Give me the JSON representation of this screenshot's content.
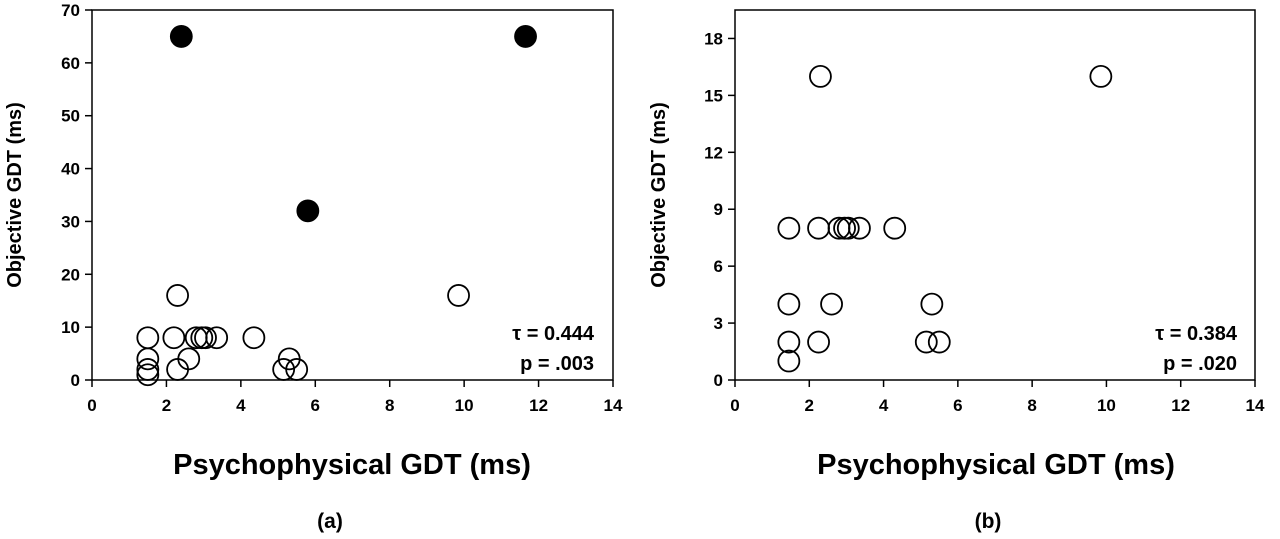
{
  "chart_data": [
    {
      "type": "scatter",
      "panel_label": "(a)",
      "xlabel": "Psychophysical GDT (ms)",
      "ylabel": "Objective GDT (ms)",
      "xlim": [
        0,
        14
      ],
      "ylim": [
        0,
        70
      ],
      "xticks": [
        0,
        2,
        4,
        6,
        8,
        10,
        12,
        14
      ],
      "yticks": [
        0,
        10,
        20,
        30,
        40,
        50,
        60,
        70
      ],
      "grid": false,
      "stats": {
        "tau": "τ = 0.444",
        "p": "p = .003"
      },
      "series": [
        {
          "marker": "open-circle",
          "points": [
            {
              "x": 1.5,
              "y": 8
            },
            {
              "x": 1.5,
              "y": 4
            },
            {
              "x": 1.5,
              "y": 2
            },
            {
              "x": 1.5,
              "y": 1
            },
            {
              "x": 2.3,
              "y": 16
            },
            {
              "x": 2.2,
              "y": 8
            },
            {
              "x": 2.3,
              "y": 2
            },
            {
              "x": 2.6,
              "y": 4
            },
            {
              "x": 2.8,
              "y": 8
            },
            {
              "x": 2.95,
              "y": 8
            },
            {
              "x": 3.05,
              "y": 8
            },
            {
              "x": 3.35,
              "y": 8
            },
            {
              "x": 4.35,
              "y": 8
            },
            {
              "x": 5.3,
              "y": 4
            },
            {
              "x": 5.15,
              "y": 2
            },
            {
              "x": 5.5,
              "y": 2
            },
            {
              "x": 9.85,
              "y": 16
            }
          ]
        },
        {
          "marker": "filled-circle",
          "points": [
            {
              "x": 2.4,
              "y": 65
            },
            {
              "x": 5.8,
              "y": 32
            },
            {
              "x": 11.65,
              "y": 65
            }
          ]
        }
      ]
    },
    {
      "type": "scatter",
      "panel_label": "(b)",
      "xlabel": "Psychophysical GDT (ms)",
      "ylabel": "Objective GDT (ms)",
      "xlim": [
        0,
        14
      ],
      "ylim": [
        0,
        19.5
      ],
      "xticks": [
        0,
        2,
        4,
        6,
        8,
        10,
        12,
        14
      ],
      "yticks": [
        0,
        3,
        6,
        9,
        12,
        15,
        18
      ],
      "grid": false,
      "stats": {
        "tau": "τ = 0.384",
        "p": "p = .020"
      },
      "series": [
        {
          "marker": "open-circle",
          "points": [
            {
              "x": 1.45,
              "y": 8
            },
            {
              "x": 1.45,
              "y": 4
            },
            {
              "x": 1.45,
              "y": 2
            },
            {
              "x": 1.45,
              "y": 1
            },
            {
              "x": 2.3,
              "y": 16
            },
            {
              "x": 2.25,
              "y": 8
            },
            {
              "x": 2.25,
              "y": 2
            },
            {
              "x": 2.6,
              "y": 4
            },
            {
              "x": 2.8,
              "y": 8
            },
            {
              "x": 2.95,
              "y": 8
            },
            {
              "x": 3.05,
              "y": 8
            },
            {
              "x": 3.35,
              "y": 8
            },
            {
              "x": 4.3,
              "y": 8
            },
            {
              "x": 5.3,
              "y": 4
            },
            {
              "x": 5.15,
              "y": 2
            },
            {
              "x": 5.5,
              "y": 2
            },
            {
              "x": 9.85,
              "y": 16
            }
          ]
        }
      ]
    }
  ]
}
